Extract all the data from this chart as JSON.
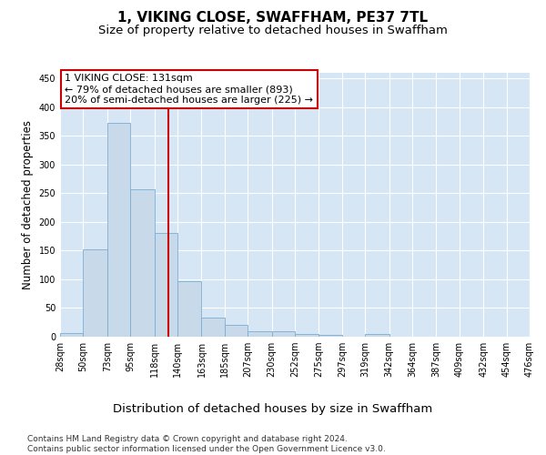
{
  "title": "1, VIKING CLOSE, SWAFFHAM, PE37 7TL",
  "subtitle": "Size of property relative to detached houses in Swaffham",
  "xlabel_bottom": "Distribution of detached houses by size in Swaffham",
  "ylabel": "Number of detached properties",
  "footer": "Contains HM Land Registry data © Crown copyright and database right 2024.\nContains public sector information licensed under the Open Government Licence v3.0.",
  "bin_edges": [
    28,
    50,
    73,
    95,
    118,
    140,
    163,
    185,
    207,
    230,
    252,
    275,
    297,
    319,
    342,
    364,
    387,
    409,
    432,
    454,
    476
  ],
  "bar_heights": [
    7,
    152,
    372,
    257,
    181,
    96,
    33,
    20,
    10,
    9,
    5,
    3,
    0,
    4,
    0,
    0,
    0,
    0,
    0,
    0
  ],
  "bar_color": "#c8d9ea",
  "bar_edgecolor": "#7aadd4",
  "vline_x": 131,
  "vline_color": "#cc0000",
  "annotation_text": "1 VIKING CLOSE: 131sqm\n← 79% of detached houses are smaller (893)\n20% of semi-detached houses are larger (225) →",
  "ylim": [
    0,
    460
  ],
  "yticks": [
    0,
    50,
    100,
    150,
    200,
    250,
    300,
    350,
    400,
    450
  ],
  "background_color": "#d6e6f5",
  "grid_color": "#ffffff",
  "title_fontsize": 11,
  "subtitle_fontsize": 9.5,
  "ylabel_fontsize": 8.5,
  "xlabel_fontsize": 9.5,
  "tick_fontsize": 7,
  "footer_fontsize": 6.5
}
